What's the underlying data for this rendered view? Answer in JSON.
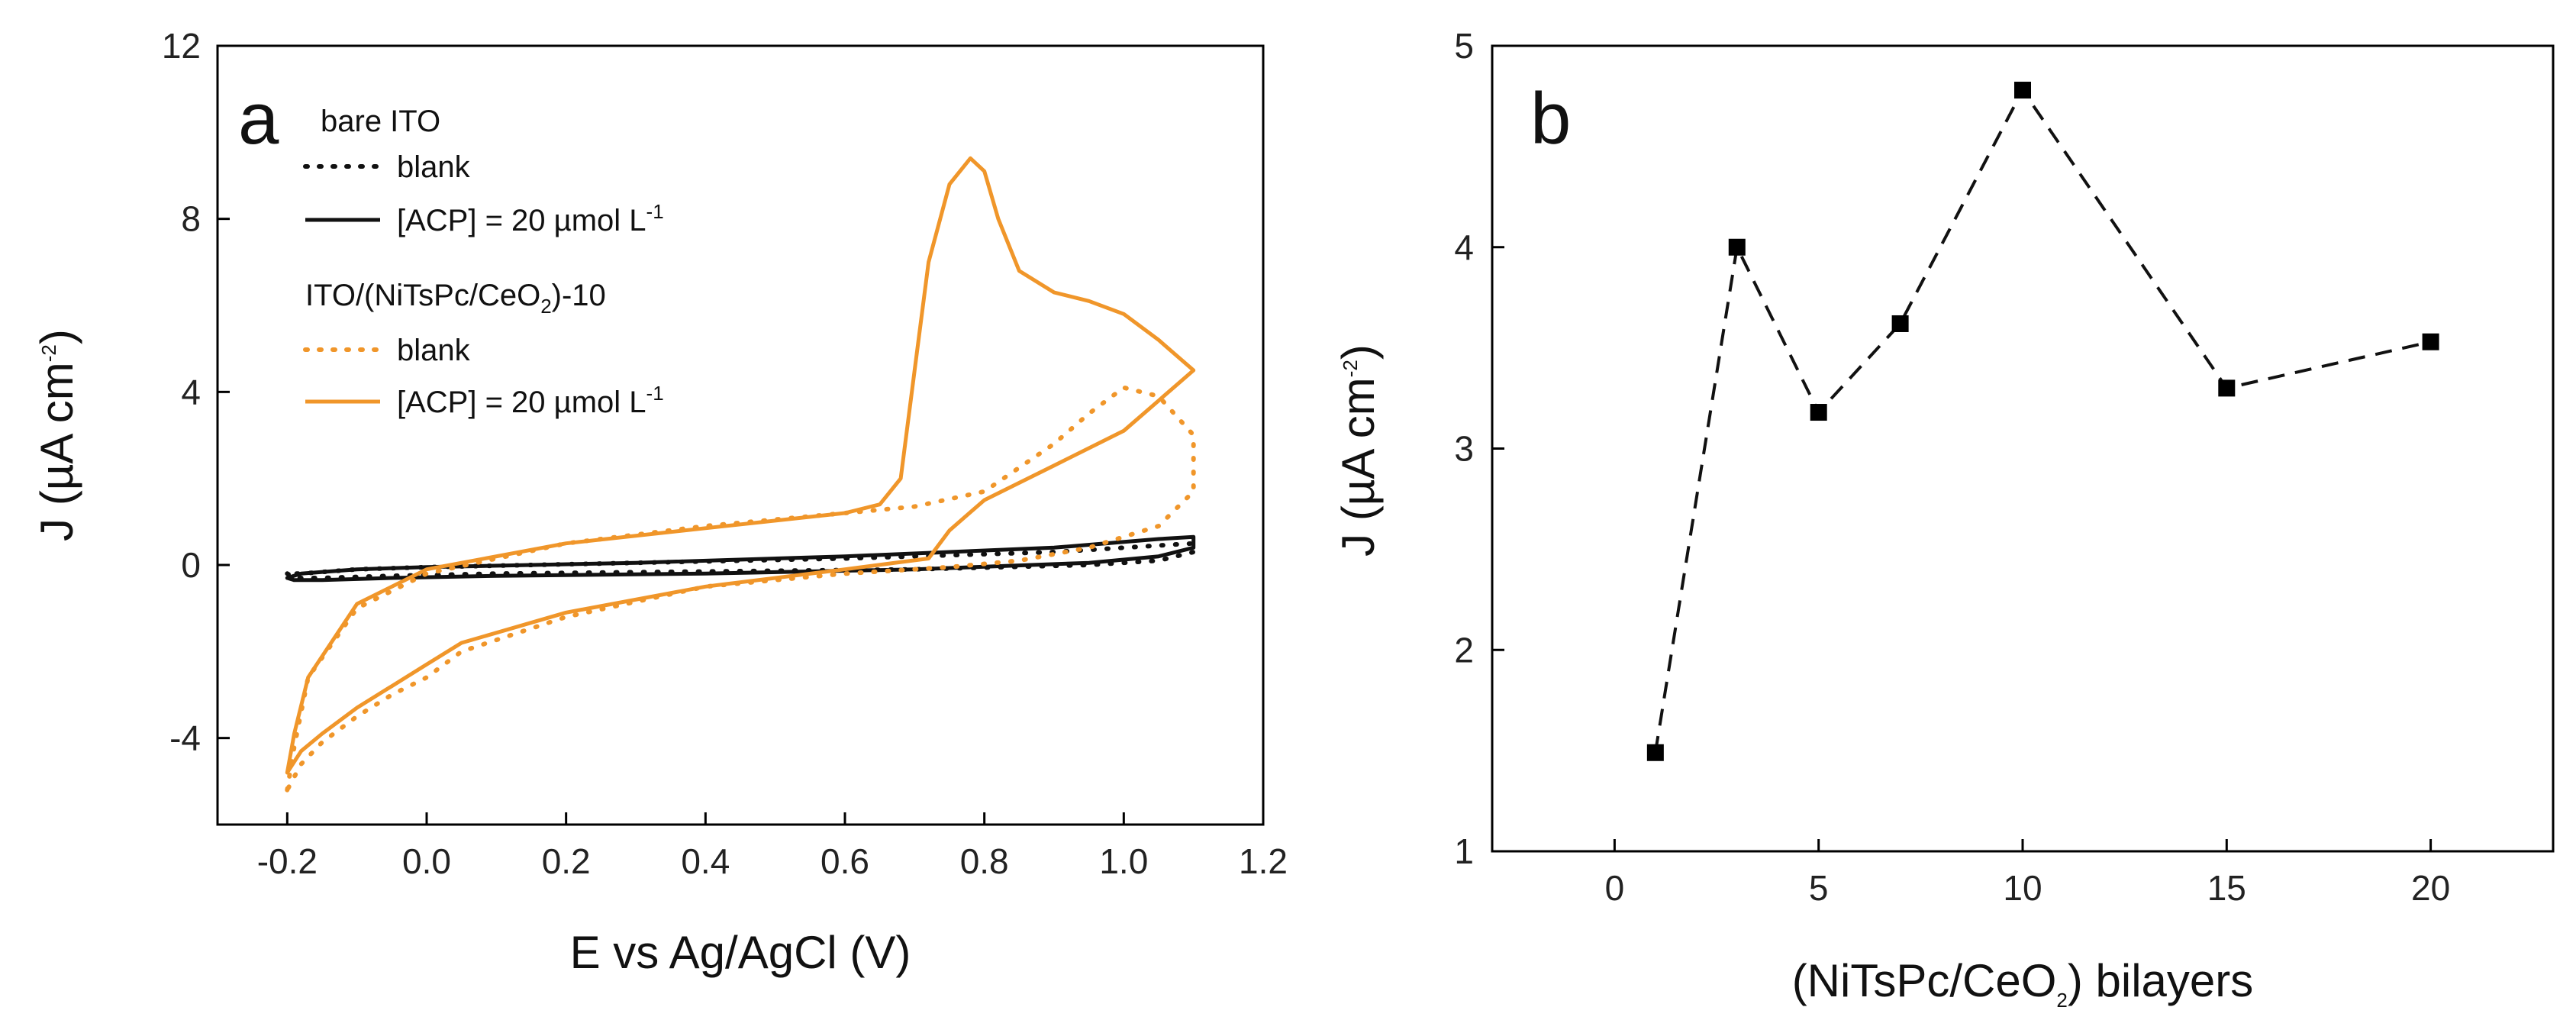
{
  "chart_data": [
    {
      "panel": "a",
      "type": "line",
      "xlabel": "E vs Ag/AgCl (V)",
      "ylabel_main": "J (µA cm",
      "ylabel_sup": "-2",
      "ylabel_close": ")",
      "xlim": [
        -0.3,
        1.2
      ],
      "ylim": [
        -6,
        12
      ],
      "xticks": [
        -0.2,
        0.0,
        0.2,
        0.4,
        0.6,
        0.8,
        1.0,
        1.2
      ],
      "xtick_labels": [
        "-0.2",
        "0.0",
        "0.2",
        "0.4",
        "0.6",
        "0.8",
        "1.0",
        "1.2"
      ],
      "yticks": [
        -4,
        0,
        4,
        8,
        12
      ],
      "ytick_labels": [
        "-4",
        "0",
        "4",
        "8",
        "12"
      ],
      "legend": {
        "group1_title": "bare ITO",
        "group1_items": [
          "blank",
          "[ACP] = 20 µmol L"
        ],
        "group1_sup": "-1",
        "group2_title_pre": "ITO/(NiTsPc/CeO",
        "group2_title_sub": "2",
        "group2_title_post": ")-10",
        "group2_items": [
          "blank",
          "[ACP] = 20 µmol L"
        ],
        "group2_sup": "-1"
      },
      "colors": {
        "bare": "#111111",
        "film": "#f0962a"
      },
      "series": [
        {
          "name": "bare ITO blank",
          "style": "dotted",
          "color_key": "bare",
          "x": [
            -0.2,
            -0.19,
            -0.15,
            -0.05,
            0.1,
            0.4,
            0.7,
            0.95,
            1.05,
            1.1,
            1.1,
            1.05,
            0.9,
            0.6,
            0.3,
            0.0,
            -0.1,
            -0.18,
            -0.2
          ],
          "y": [
            -0.2,
            -0.3,
            -0.3,
            -0.25,
            -0.2,
            -0.15,
            -0.1,
            0.0,
            0.1,
            0.3,
            0.5,
            0.45,
            0.3,
            0.15,
            0.05,
            -0.05,
            -0.1,
            -0.2,
            -0.2
          ]
        },
        {
          "name": "bare ITO [ACP] = 20 µmol L-1",
          "style": "solid",
          "color_key": "bare",
          "x": [
            -0.2,
            -0.19,
            -0.15,
            -0.05,
            0.1,
            0.4,
            0.7,
            0.95,
            1.05,
            1.1,
            1.1,
            1.05,
            0.9,
            0.6,
            0.3,
            0.0,
            -0.1,
            -0.18,
            -0.2
          ],
          "y": [
            -0.3,
            -0.35,
            -0.35,
            -0.3,
            -0.25,
            -0.2,
            -0.1,
            0.05,
            0.2,
            0.4,
            0.65,
            0.6,
            0.4,
            0.2,
            0.05,
            -0.05,
            -0.1,
            -0.2,
            -0.3
          ]
        },
        {
          "name": "ITO/(NiTsPc/CeO2)-10 blank",
          "style": "dotted",
          "color_key": "film",
          "x": [
            -0.2,
            -0.19,
            -0.17,
            -0.1,
            0.0,
            0.2,
            0.4,
            0.6,
            0.7,
            0.8,
            0.9,
            0.95,
            1.0,
            1.05,
            1.1,
            1.1,
            1.05,
            0.95,
            0.85,
            0.75,
            0.6,
            0.4,
            0.2,
            0.05,
            0.0,
            -0.05,
            -0.1,
            -0.15,
            -0.18,
            -0.2
          ],
          "y": [
            -5.2,
            -4.2,
            -2.6,
            -1.0,
            -0.2,
            0.5,
            0.9,
            1.2,
            1.35,
            1.7,
            2.8,
            3.5,
            4.1,
            3.9,
            3.0,
            1.7,
            0.9,
            0.4,
            0.1,
            -0.05,
            -0.2,
            -0.5,
            -1.2,
            -2.0,
            -2.6,
            -3.0,
            -3.5,
            -4.1,
            -4.6,
            -5.2
          ]
        },
        {
          "name": "ITO/(NiTsPc/CeO2)-10 [ACP] = 20 µmol L-1",
          "style": "solid",
          "color_key": "film",
          "x": [
            -0.2,
            -0.19,
            -0.17,
            -0.1,
            0.0,
            0.2,
            0.4,
            0.6,
            0.65,
            0.68,
            0.7,
            0.72,
            0.75,
            0.78,
            0.8,
            0.82,
            0.85,
            0.9,
            0.95,
            1.0,
            1.05,
            1.1,
            1.1,
            1.05,
            1.0,
            0.9,
            0.8,
            0.75,
            0.72,
            0.6,
            0.4,
            0.2,
            0.05,
            0.0,
            -0.05,
            -0.1,
            -0.15,
            -0.18,
            -0.2
          ],
          "y": [
            -4.8,
            -3.9,
            -2.6,
            -0.9,
            -0.1,
            0.5,
            0.85,
            1.2,
            1.4,
            2.0,
            4.5,
            7.0,
            8.8,
            9.4,
            9.1,
            8.0,
            6.8,
            6.3,
            6.1,
            5.8,
            5.2,
            4.5,
            4.5,
            3.8,
            3.1,
            2.3,
            1.5,
            0.8,
            0.15,
            -0.1,
            -0.5,
            -1.1,
            -1.8,
            -2.3,
            -2.8,
            -3.3,
            -3.9,
            -4.3,
            -4.8
          ]
        }
      ]
    },
    {
      "panel": "b",
      "type": "scatter",
      "xlabel_pre": "(NiTsPc/CeO",
      "xlabel_sub": "2",
      "xlabel_post": ") bilayers",
      "ylabel_main": "J (µA cm",
      "ylabel_sup": "-2",
      "ylabel_close": ")",
      "xlim": [
        -3,
        23
      ],
      "ylim": [
        1,
        5
      ],
      "xticks": [
        0,
        5,
        10,
        15,
        20
      ],
      "xtick_labels": [
        "0",
        "5",
        "10",
        "15",
        "20"
      ],
      "yticks": [
        1,
        2,
        3,
        4,
        5
      ],
      "ytick_labels": [
        "1",
        "2",
        "3",
        "4",
        "5"
      ],
      "line_style": "dashed",
      "x": [
        1,
        3,
        5,
        7,
        10,
        15,
        20
      ],
      "y": [
        1.49,
        4.0,
        3.18,
        3.62,
        4.78,
        3.3,
        3.53
      ]
    }
  ]
}
